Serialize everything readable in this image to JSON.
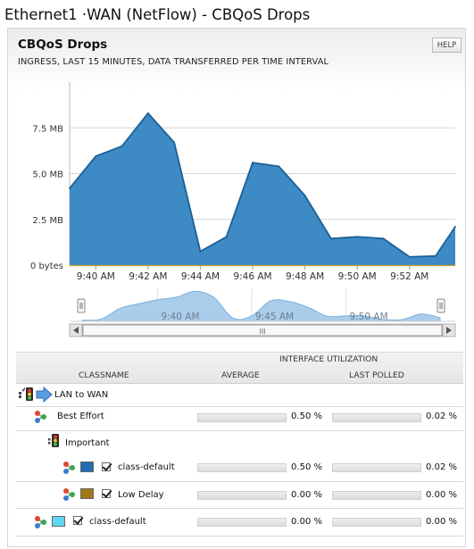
{
  "page": {
    "title": "Ethernet1 ·WAN (NetFlow) - CBQoS Drops"
  },
  "panel": {
    "title": "CBQoS Drops",
    "subtitle": "INGRESS, LAST 15 MINUTES, DATA TRANSFERRED PER TIME INTERVAL",
    "help_label": "HELP"
  },
  "chart_data": {
    "type": "area",
    "title": "CBQoS Drops",
    "xlabel": "",
    "ylabel": "",
    "y_unit": "MB",
    "y_ticks": [
      {
        "value": 0,
        "label": "0 bytes"
      },
      {
        "value": 2.5,
        "label": "2.5 MB"
      },
      {
        "value": 5.0,
        "label": "5.0 MB"
      },
      {
        "value": 7.5,
        "label": "7.5 MB"
      }
    ],
    "ylim": [
      0,
      10
    ],
    "x_ticks": [
      "9:40 AM",
      "9:42 AM",
      "9:44 AM",
      "9:46 AM",
      "9:48 AM",
      "9:50 AM",
      "9:52 AM"
    ],
    "series": [
      {
        "color": "#2e7fb8",
        "x": [
          "9:39:00",
          "9:40:00",
          "9:41:00",
          "9:42:00",
          "9:43:00",
          "9:44:00",
          "9:45:00",
          "9:46:00",
          "9:47:00",
          "9:48:00",
          "9:49:00",
          "9:50:00",
          "9:51:00",
          "9:52:00",
          "9:53:00",
          "9:53:45"
        ],
        "values": [
          4.2,
          5.95,
          6.5,
          8.3,
          6.7,
          0.75,
          1.55,
          5.6,
          5.4,
          3.8,
          1.45,
          1.55,
          1.45,
          0.45,
          0.5,
          2.1
        ]
      }
    ],
    "grid": true,
    "navigator": {
      "tick_labels": [
        "9:40 AM",
        "9:45 AM",
        "9:50 AM"
      ],
      "x": [
        "9:36",
        "9:37",
        "9:38",
        "9:39",
        "9:40",
        "9:41",
        "9:42",
        "9:43",
        "9:44",
        "9:45",
        "9:46",
        "9:47",
        "9:48",
        "9:49",
        "9:50",
        "9:51",
        "9:52",
        "9:53",
        "9:54",
        "9:55"
      ],
      "values": [
        0.3,
        0.6,
        3.5,
        4.8,
        5.9,
        6.6,
        8.2,
        6.5,
        0.9,
        1.5,
        5.6,
        5.4,
        3.8,
        1.4,
        1.5,
        1.4,
        0.5,
        0.5,
        2.0,
        1.0
      ],
      "scrollbar_grip": "III"
    }
  },
  "table": {
    "group_header": "INTERFACE UTILIZATION",
    "col_classname": "CLASSNAME",
    "col_average": "AVERAGE",
    "col_last_polled": "LAST POLLED",
    "rows": [
      {
        "name": "LAN to WAN",
        "average": "",
        "last_polled": "",
        "avg_fill": 0,
        "last_fill": 0
      },
      {
        "name": "Best Effort",
        "average": "0.50 %",
        "last_polled": "0.02 %",
        "avg_fill": 0.005,
        "last_fill": 0.0002
      },
      {
        "name": "Important",
        "average": "",
        "last_polled": "",
        "avg_fill": 0,
        "last_fill": 0
      },
      {
        "name": "class-default",
        "average": "0.50 %",
        "last_polled": "0.02 %",
        "avg_fill": 0.005,
        "last_fill": 0.0002,
        "swatch": "#1f6fb2"
      },
      {
        "name": "Low Delay",
        "average": "0.00 %",
        "last_polled": "0.00 %",
        "avg_fill": 0,
        "last_fill": 0,
        "swatch": "#a07814"
      },
      {
        "name": "class-default",
        "average": "0.00 %",
        "last_polled": "0.00 %",
        "avg_fill": 0,
        "last_fill": 0,
        "swatch": "#5ed8ef"
      }
    ]
  },
  "colors": {
    "area_fill": "#3d8ac4",
    "area_stroke": "#1c5f95",
    "navigator_fill": "#a9cdeb"
  }
}
